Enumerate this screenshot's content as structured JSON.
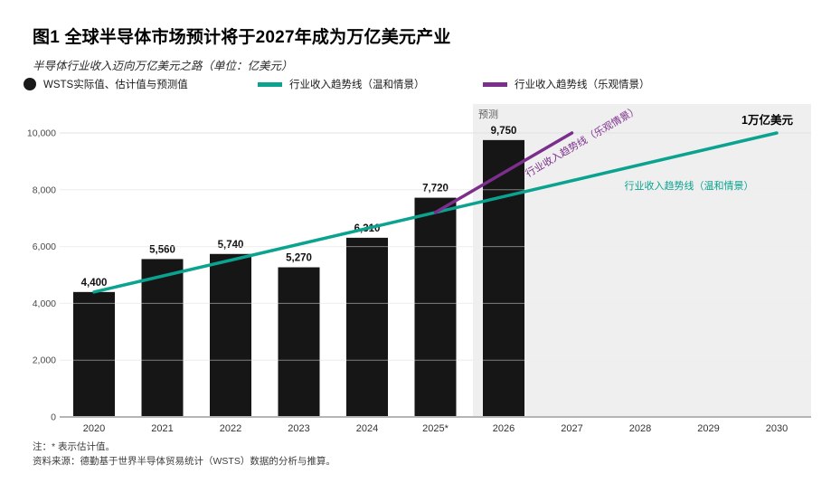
{
  "header": {
    "title": "图1 全球半导体市场预计将于2027年成为万亿美元产业",
    "subtitle": "半导体行业收入迈向万亿美元之路（单位：亿美元）"
  },
  "legend": {
    "items": [
      {
        "label": "WSTS实际值、估计值与预测值",
        "marker": "dot",
        "color": "#1a1a1a"
      },
      {
        "label": "行业收入趋势线（温和情景）",
        "marker": "line",
        "color": "#0ba390"
      },
      {
        "label": "行业收入趋势线（乐观情景）",
        "marker": "line",
        "color": "#7c2e8c"
      }
    ]
  },
  "chart_data": {
    "type": "bar",
    "title": "图1 全球半导体市场预计将于2027年成为万亿美元产业",
    "subtitle": "半导体行业收入迈向万亿美元之路（单位：亿美元）",
    "unit": "亿美元",
    "categories": [
      "2020",
      "2021",
      "2022",
      "2023",
      "2024",
      "2025*",
      "2026",
      "2027",
      "2028",
      "2029",
      "2030"
    ],
    "series": [
      {
        "name": "WSTS实际值、估计值与预测值",
        "type": "bar",
        "color": "#161616",
        "values": [
          4400,
          5560,
          5740,
          5270,
          6310,
          7720,
          9750,
          null,
          null,
          null,
          null
        ],
        "labels": [
          "4,400",
          "5,560",
          "5,740",
          "5,270",
          "6,310",
          "7,720",
          "9,750"
        ]
      },
      {
        "name": "行业收入趋势线（温和情景）",
        "type": "line",
        "color": "#0ba390",
        "points": [
          {
            "x": "2020",
            "y": 4400
          },
          {
            "x": "2030",
            "y": 10000
          }
        ]
      },
      {
        "name": "行业收入趋势线（乐观情景）",
        "type": "line",
        "color": "#7c2e8c",
        "points": [
          {
            "x": "2025*",
            "y": 7200
          },
          {
            "x": "2027",
            "y": 10000
          }
        ]
      }
    ],
    "ylim": [
      0,
      10000
    ],
    "yticks": [
      0,
      2000,
      4000,
      6000,
      8000,
      10000
    ],
    "ytick_labels": [
      "0",
      "2,000",
      "4,000",
      "6,000",
      "8,000",
      "10,000"
    ],
    "grid": true,
    "legend_position": "top",
    "forecast_band": {
      "label": "预测",
      "start_after_category": "2025*",
      "end_category": "2030"
    },
    "annotations": [
      {
        "id": "forecast-label",
        "text": "预测"
      },
      {
        "id": "trillion",
        "text": "1万亿美元"
      },
      {
        "id": "moderate-label",
        "text": "行业收入趋势线（温和情景）",
        "color": "#0ba390"
      },
      {
        "id": "optimistic-label",
        "text": "行业收入趋势线（乐观情景）",
        "color": "#7c2e8c",
        "rotated": true
      }
    ]
  },
  "colors": {
    "bar": "#161616",
    "teal": "#0ba390",
    "purple": "#7c2e8c",
    "band": "#efefef",
    "grid": "#e2e2e2",
    "axis": "#b5b5b5",
    "tick": "#4a4a4a",
    "muted": "#5f5f5f"
  },
  "footnotes": {
    "note": "注：* 表示估计值。",
    "source": "资料来源：德勤基于世界半导体贸易统计（WSTS）数据的分析与推算。"
  }
}
